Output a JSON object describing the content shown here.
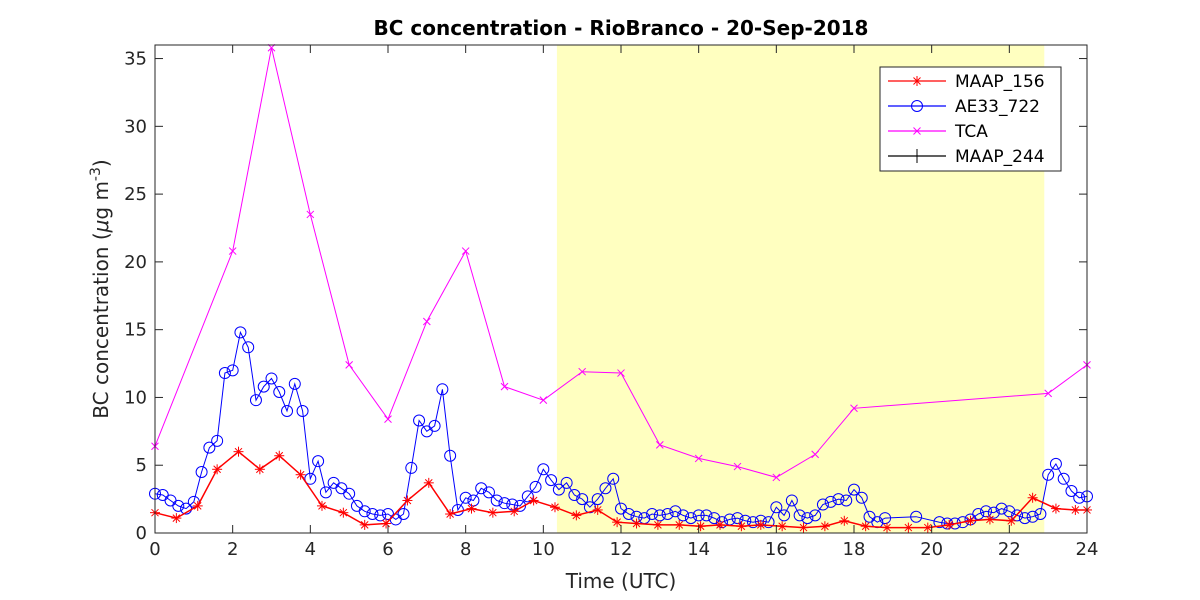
{
  "chart_data": {
    "type": "line",
    "title": "BC concentration  - RioBranco - 20-Sep-2018",
    "xlabel": "Time (UTC)",
    "ylabel_main": "BC concentration (",
    "ylabel_mu": "μ",
    "ylabel_unit": "g m",
    "ylabel_exp": "-3",
    "ylabel_close": ")",
    "xlim": [
      0,
      24
    ],
    "ylim": [
      0,
      36
    ],
    "xticks": [
      0,
      2,
      4,
      6,
      8,
      10,
      12,
      14,
      16,
      18,
      20,
      22,
      24
    ],
    "yticks": [
      0,
      5,
      10,
      15,
      20,
      25,
      30,
      35
    ],
    "grid": false,
    "legend_position": "top-right",
    "shaded_region": {
      "x_start": 10.35,
      "x_end": 22.9,
      "color": "#ffffc0"
    },
    "series": [
      {
        "name": "MAAP_156",
        "color": "#ff0000",
        "marker": "asterisk",
        "x": [
          0,
          0.55,
          1.1,
          1.6,
          2.15,
          2.7,
          3.2,
          3.75,
          4.3,
          4.85,
          5.4,
          5.95,
          6.5,
          7.05,
          7.6,
          8.15,
          8.7,
          9.25,
          9.75,
          10.3,
          10.85,
          11.4,
          11.9,
          12.4,
          12.95,
          13.5,
          14.05,
          14.55,
          15.1,
          15.6,
          16.15,
          16.7,
          17.25,
          17.75,
          18.3,
          18.85,
          19.4,
          19.9,
          20.45,
          21.0,
          21.5,
          22.05,
          22.6,
          23.2,
          23.7,
          24.0
        ],
        "y": [
          1.5,
          1.1,
          2.0,
          4.7,
          6.0,
          4.7,
          5.7,
          4.3,
          2.0,
          1.5,
          0.6,
          0.7,
          2.4,
          3.7,
          1.4,
          1.8,
          1.5,
          1.6,
          2.4,
          1.9,
          1.3,
          1.7,
          0.8,
          0.7,
          0.6,
          0.6,
          0.5,
          0.6,
          0.5,
          0.6,
          0.5,
          0.4,
          0.5,
          0.9,
          0.5,
          0.4,
          0.4,
          0.4,
          0.6,
          0.9,
          1.0,
          0.9,
          2.6,
          1.8,
          1.7,
          1.7
        ]
      },
      {
        "name": "AE33_722",
        "color": "#0000ff",
        "marker": "circle",
        "x": [
          0,
          0.2,
          0.4,
          0.6,
          0.8,
          1.0,
          1.2,
          1.4,
          1.6,
          1.8,
          2.0,
          2.2,
          2.4,
          2.6,
          2.8,
          3.0,
          3.2,
          3.4,
          3.6,
          3.8,
          4.0,
          4.2,
          4.4,
          4.6,
          4.8,
          5.0,
          5.2,
          5.4,
          5.6,
          5.8,
          6.0,
          6.2,
          6.4,
          6.6,
          6.8,
          7.0,
          7.2,
          7.4,
          7.6,
          7.8,
          8.0,
          8.2,
          8.4,
          8.6,
          8.8,
          9.0,
          9.2,
          9.4,
          9.6,
          9.8,
          10.0,
          10.2,
          10.4,
          10.6,
          10.8,
          11.0,
          11.2,
          11.4,
          11.6,
          11.8,
          12.0,
          12.2,
          12.4,
          12.6,
          12.8,
          13.0,
          13.2,
          13.4,
          13.6,
          13.8,
          14.0,
          14.2,
          14.4,
          14.6,
          14.8,
          15.0,
          15.2,
          15.4,
          15.6,
          15.8,
          16.0,
          16.2,
          16.4,
          16.6,
          16.8,
          17.0,
          17.2,
          17.4,
          17.6,
          17.8,
          18.0,
          18.2,
          18.4,
          18.6,
          18.8,
          19.6,
          20.2,
          20.4,
          20.6,
          20.8,
          21.0,
          21.2,
          21.4,
          21.6,
          21.8,
          22.0,
          22.2,
          22.4,
          22.6,
          22.8,
          23.0,
          23.2,
          23.4,
          23.6,
          23.8,
          24.0
        ],
        "y": [
          2.9,
          2.8,
          2.4,
          2.0,
          1.8,
          2.3,
          4.5,
          6.3,
          6.8,
          11.8,
          12.0,
          14.8,
          13.7,
          9.8,
          10.8,
          11.4,
          10.4,
          9.0,
          11.0,
          9.0,
          4.0,
          5.3,
          3.0,
          3.7,
          3.3,
          2.9,
          2.0,
          1.6,
          1.4,
          1.3,
          1.4,
          1.0,
          1.4,
          4.8,
          8.3,
          7.5,
          7.9,
          10.6,
          5.7,
          1.7,
          2.6,
          2.4,
          3.3,
          3.0,
          2.4,
          2.2,
          2.1,
          2.0,
          2.7,
          3.4,
          4.7,
          3.9,
          3.2,
          3.7,
          2.8,
          2.5,
          1.9,
          2.5,
          3.3,
          4.0,
          1.8,
          1.4,
          1.2,
          1.1,
          1.4,
          1.3,
          1.4,
          1.6,
          1.3,
          1.1,
          1.3,
          1.3,
          1.1,
          0.8,
          1.0,
          1.1,
          0.9,
          0.8,
          0.9,
          0.8,
          1.9,
          1.3,
          2.4,
          1.3,
          1.1,
          1.3,
          2.1,
          2.3,
          2.5,
          2.4,
          3.2,
          2.6,
          1.2,
          0.8,
          1.1,
          1.2,
          0.8,
          0.7,
          0.7,
          0.8,
          1.0,
          1.4,
          1.6,
          1.5,
          1.8,
          1.6,
          1.3,
          1.1,
          1.2,
          1.4,
          4.3,
          5.1,
          4.0,
          3.1,
          2.6,
          2.7
        ],
        "x_note": ""
      },
      {
        "name": "TCA",
        "color": "#ff00ff",
        "marker": "x",
        "x": [
          0,
          2.0,
          3.0,
          4.0,
          5.0,
          6.0,
          7.0,
          8.0,
          9.0,
          10.0,
          11.0,
          12.0,
          13.0,
          14.0,
          15.0,
          16.0,
          17.0,
          18.0,
          23.0,
          24.0
        ],
        "y": [
          6.4,
          20.8,
          35.8,
          23.5,
          12.4,
          8.4,
          15.6,
          20.8,
          10.8,
          9.8,
          11.9,
          11.8,
          6.5,
          5.5,
          4.9,
          4.1,
          5.8,
          9.2,
          10.3,
          12.4
        ]
      },
      {
        "name": "MAAP_244",
        "color": "#000000",
        "marker": "plus",
        "x": [],
        "y": []
      }
    ]
  }
}
